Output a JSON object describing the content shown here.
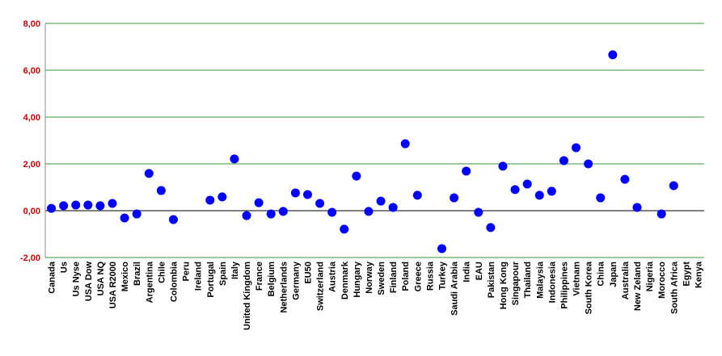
{
  "chart_data": {
    "type": "scatter",
    "categories": [
      "Canada",
      "Us",
      "Us Nyse",
      "USA Dow",
      "USA NQ",
      "USA R2000",
      "Mexico",
      "Brazil",
      "Argentina",
      "Chile",
      "Colombia",
      "Peru",
      "Ireland",
      "Portugal",
      "Spain",
      "Italy",
      "United Kingdom",
      "France",
      "Belgium",
      "Netherlands",
      "Germany",
      "EU50",
      "Switzerland",
      "Austria",
      "Denmark",
      "Hungary",
      "Norway",
      "Sweden",
      "Finland",
      "Poland",
      "Greece",
      "Russia",
      "Turkey",
      "Saudi Arabia",
      "India",
      "EAU",
      "Pakistan",
      "Hong Kong",
      "Singapour",
      "Thailand",
      "Malaysia",
      "Indonesia",
      "Philippines",
      "Vietnam",
      "South Korea",
      "China",
      "Japan",
      "Australia",
      "New Zeland",
      "Nigeria",
      "Morocco",
      "South Africa",
      "Egypt",
      "Kenya"
    ],
    "values": [
      0.1,
      0.21,
      0.24,
      0.24,
      0.21,
      0.31,
      -0.31,
      -0.14,
      1.59,
      0.86,
      -0.38,
      null,
      null,
      0.45,
      0.59,
      2.21,
      -0.21,
      0.34,
      -0.14,
      -0.03,
      0.76,
      0.69,
      0.31,
      -0.07,
      -0.79,
      1.48,
      -0.03,
      0.41,
      0.14,
      2.86,
      0.66,
      null,
      -1.62,
      0.55,
      1.69,
      -0.07,
      -0.72,
      1.9,
      0.9,
      1.14,
      0.66,
      0.83,
      2.14,
      2.69,
      2.0,
      0.55,
      6.66,
      1.34,
      0.14,
      null,
      -0.14,
      1.07,
      null,
      null
    ],
    "color": "#0000ff",
    "ylim": [
      -2,
      8
    ],
    "yticks": [
      {
        "value": -2,
        "label": "-2,00"
      },
      {
        "value": 0,
        "label": "0,00"
      },
      {
        "value": 2,
        "label": "2,00"
      },
      {
        "value": 4,
        "label": "4,00"
      },
      {
        "value": 6,
        "label": "6,00"
      },
      {
        "value": 8,
        "label": "8,00"
      }
    ],
    "grid": true
  }
}
